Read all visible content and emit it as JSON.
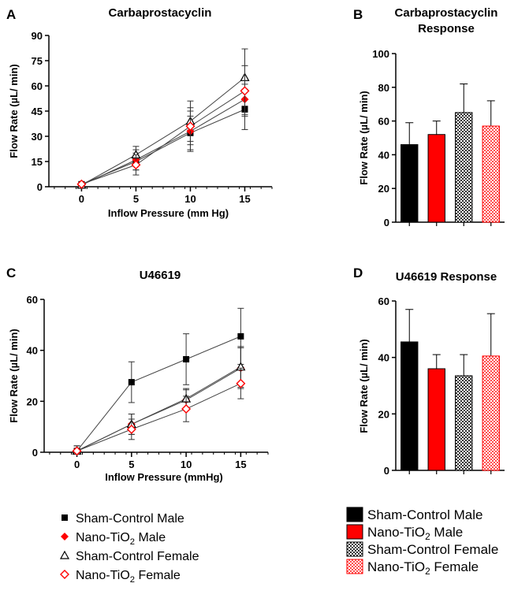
{
  "colors": {
    "sham_male": "#000000",
    "nano_male": "#ff0000",
    "sham_female": "#555555",
    "nano_female": "#ff0000",
    "axis": "#000000"
  },
  "chart_data": [
    {
      "id": "A",
      "panel_letter": "A",
      "type": "line",
      "title": "Carbaprostacyclin",
      "xlabel": "Inflow Pressure (mm Hg)",
      "ylabel": "Flow Rate (µL/ min)",
      "x": [
        0,
        5,
        10,
        15
      ],
      "xlim": [
        -3,
        17.5
      ],
      "ylim": [
        0,
        90
      ],
      "yticks": [
        0,
        15,
        30,
        45,
        60,
        75,
        90
      ],
      "xticks": [
        0,
        5,
        10,
        15
      ],
      "series": [
        {
          "name": "Sham-Control Male",
          "marker": "square",
          "values": [
            1.5,
            15,
            32,
            46
          ],
          "errors": [
            1,
            5,
            10,
            12
          ]
        },
        {
          "name": "Nano-TiO2 Male",
          "marker": "diamond-filled",
          "values": [
            1,
            16,
            33,
            52
          ],
          "errors": [
            1,
            6,
            12,
            9
          ]
        },
        {
          "name": "Sham-Control Female",
          "marker": "triangle-open",
          "values": [
            1,
            19,
            39,
            65
          ],
          "errors": [
            1,
            5,
            12,
            17
          ]
        },
        {
          "name": "Nano-TiO2 Female",
          "marker": "diamond-open",
          "values": [
            1.5,
            13,
            36,
            57
          ],
          "errors": [
            1,
            6,
            11,
            15
          ]
        }
      ]
    },
    {
      "id": "B",
      "panel_letter": "B",
      "type": "bar",
      "title_lines": [
        "Carbaprostacyclin",
        "Response"
      ],
      "ylabel": "Flow Rate (µL/ min)",
      "ylim": [
        0,
        100
      ],
      "yticks": [
        0,
        20,
        40,
        60,
        80,
        100
      ],
      "categories": [
        "Sham-Control Male",
        "Nano-TiO2 Male",
        "Sham-Control Female",
        "Nano-TiO2 Female"
      ],
      "values": [
        46,
        52,
        65,
        57
      ],
      "errors": [
        13,
        8,
        17,
        15
      ]
    },
    {
      "id": "C",
      "panel_letter": "C",
      "type": "line",
      "title": "U46619",
      "xlabel": "Inflow Pressure (mmHg)",
      "ylabel": "Flow Rate (µL/ min)",
      "x": [
        0,
        5,
        10,
        15
      ],
      "xlim": [
        -3,
        17.5
      ],
      "ylim": [
        0,
        60
      ],
      "yticks": [
        0,
        20,
        40,
        60
      ],
      "xticks": [
        0,
        5,
        10,
        15
      ],
      "series": [
        {
          "name": "Sham-Control Male",
          "marker": "square",
          "values": [
            0.5,
            27.5,
            36.5,
            45.5
          ],
          "errors": [
            2,
            8,
            10,
            11
          ]
        },
        {
          "name": "Nano-TiO2 Male",
          "marker": "diamond-filled",
          "values": [
            0.5,
            11,
            20.5,
            33
          ],
          "errors": [
            2,
            4,
            4,
            8
          ]
        },
        {
          "name": "Sham-Control Female",
          "marker": "triangle-open",
          "values": [
            0.5,
            11,
            21,
            33.5
          ],
          "errors": [
            2,
            4,
            4,
            8
          ]
        },
        {
          "name": "Nano-TiO2 Female",
          "marker": "diamond-open",
          "values": [
            0.5,
            9,
            17,
            27
          ],
          "errors": [
            2,
            4,
            5,
            6
          ]
        }
      ]
    },
    {
      "id": "D",
      "panel_letter": "D",
      "type": "bar",
      "title_lines": [
        "U46619 Response"
      ],
      "ylabel": "Flow Rate (µL/ min)",
      "ylim": [
        0,
        60
      ],
      "yticks": [
        0,
        20,
        40,
        60
      ],
      "categories": [
        "Sham-Control Male",
        "Nano-TiO2 Male",
        "Sham-Control Female",
        "Nano-TiO2 Female"
      ],
      "values": [
        45.5,
        36,
        33.5,
        40.5
      ],
      "errors": [
        11.5,
        5,
        7.5,
        15
      ]
    }
  ],
  "legend_left": [
    {
      "label": "Sham-Control Male",
      "marker": "square"
    },
    {
      "label": "Nano-TiO",
      "sub": "2",
      "tail": " Male",
      "marker": "diamond-filled"
    },
    {
      "label": "Sham-Control Female",
      "marker": "triangle-open"
    },
    {
      "label": "Nano-TiO",
      "sub": "2",
      "tail": " Female",
      "marker": "diamond-open"
    }
  ],
  "legend_right": [
    {
      "label": "Sham-Control Male",
      "fill": "black"
    },
    {
      "label": "Nano-TiO",
      "sub": "2",
      "tail": " Male",
      "fill": "red"
    },
    {
      "label": "Sham-Control Female",
      "fill": "checker-gray"
    },
    {
      "label": "Nano-TiO",
      "sub": "2",
      "tail": " Female",
      "fill": "checker-red"
    }
  ]
}
